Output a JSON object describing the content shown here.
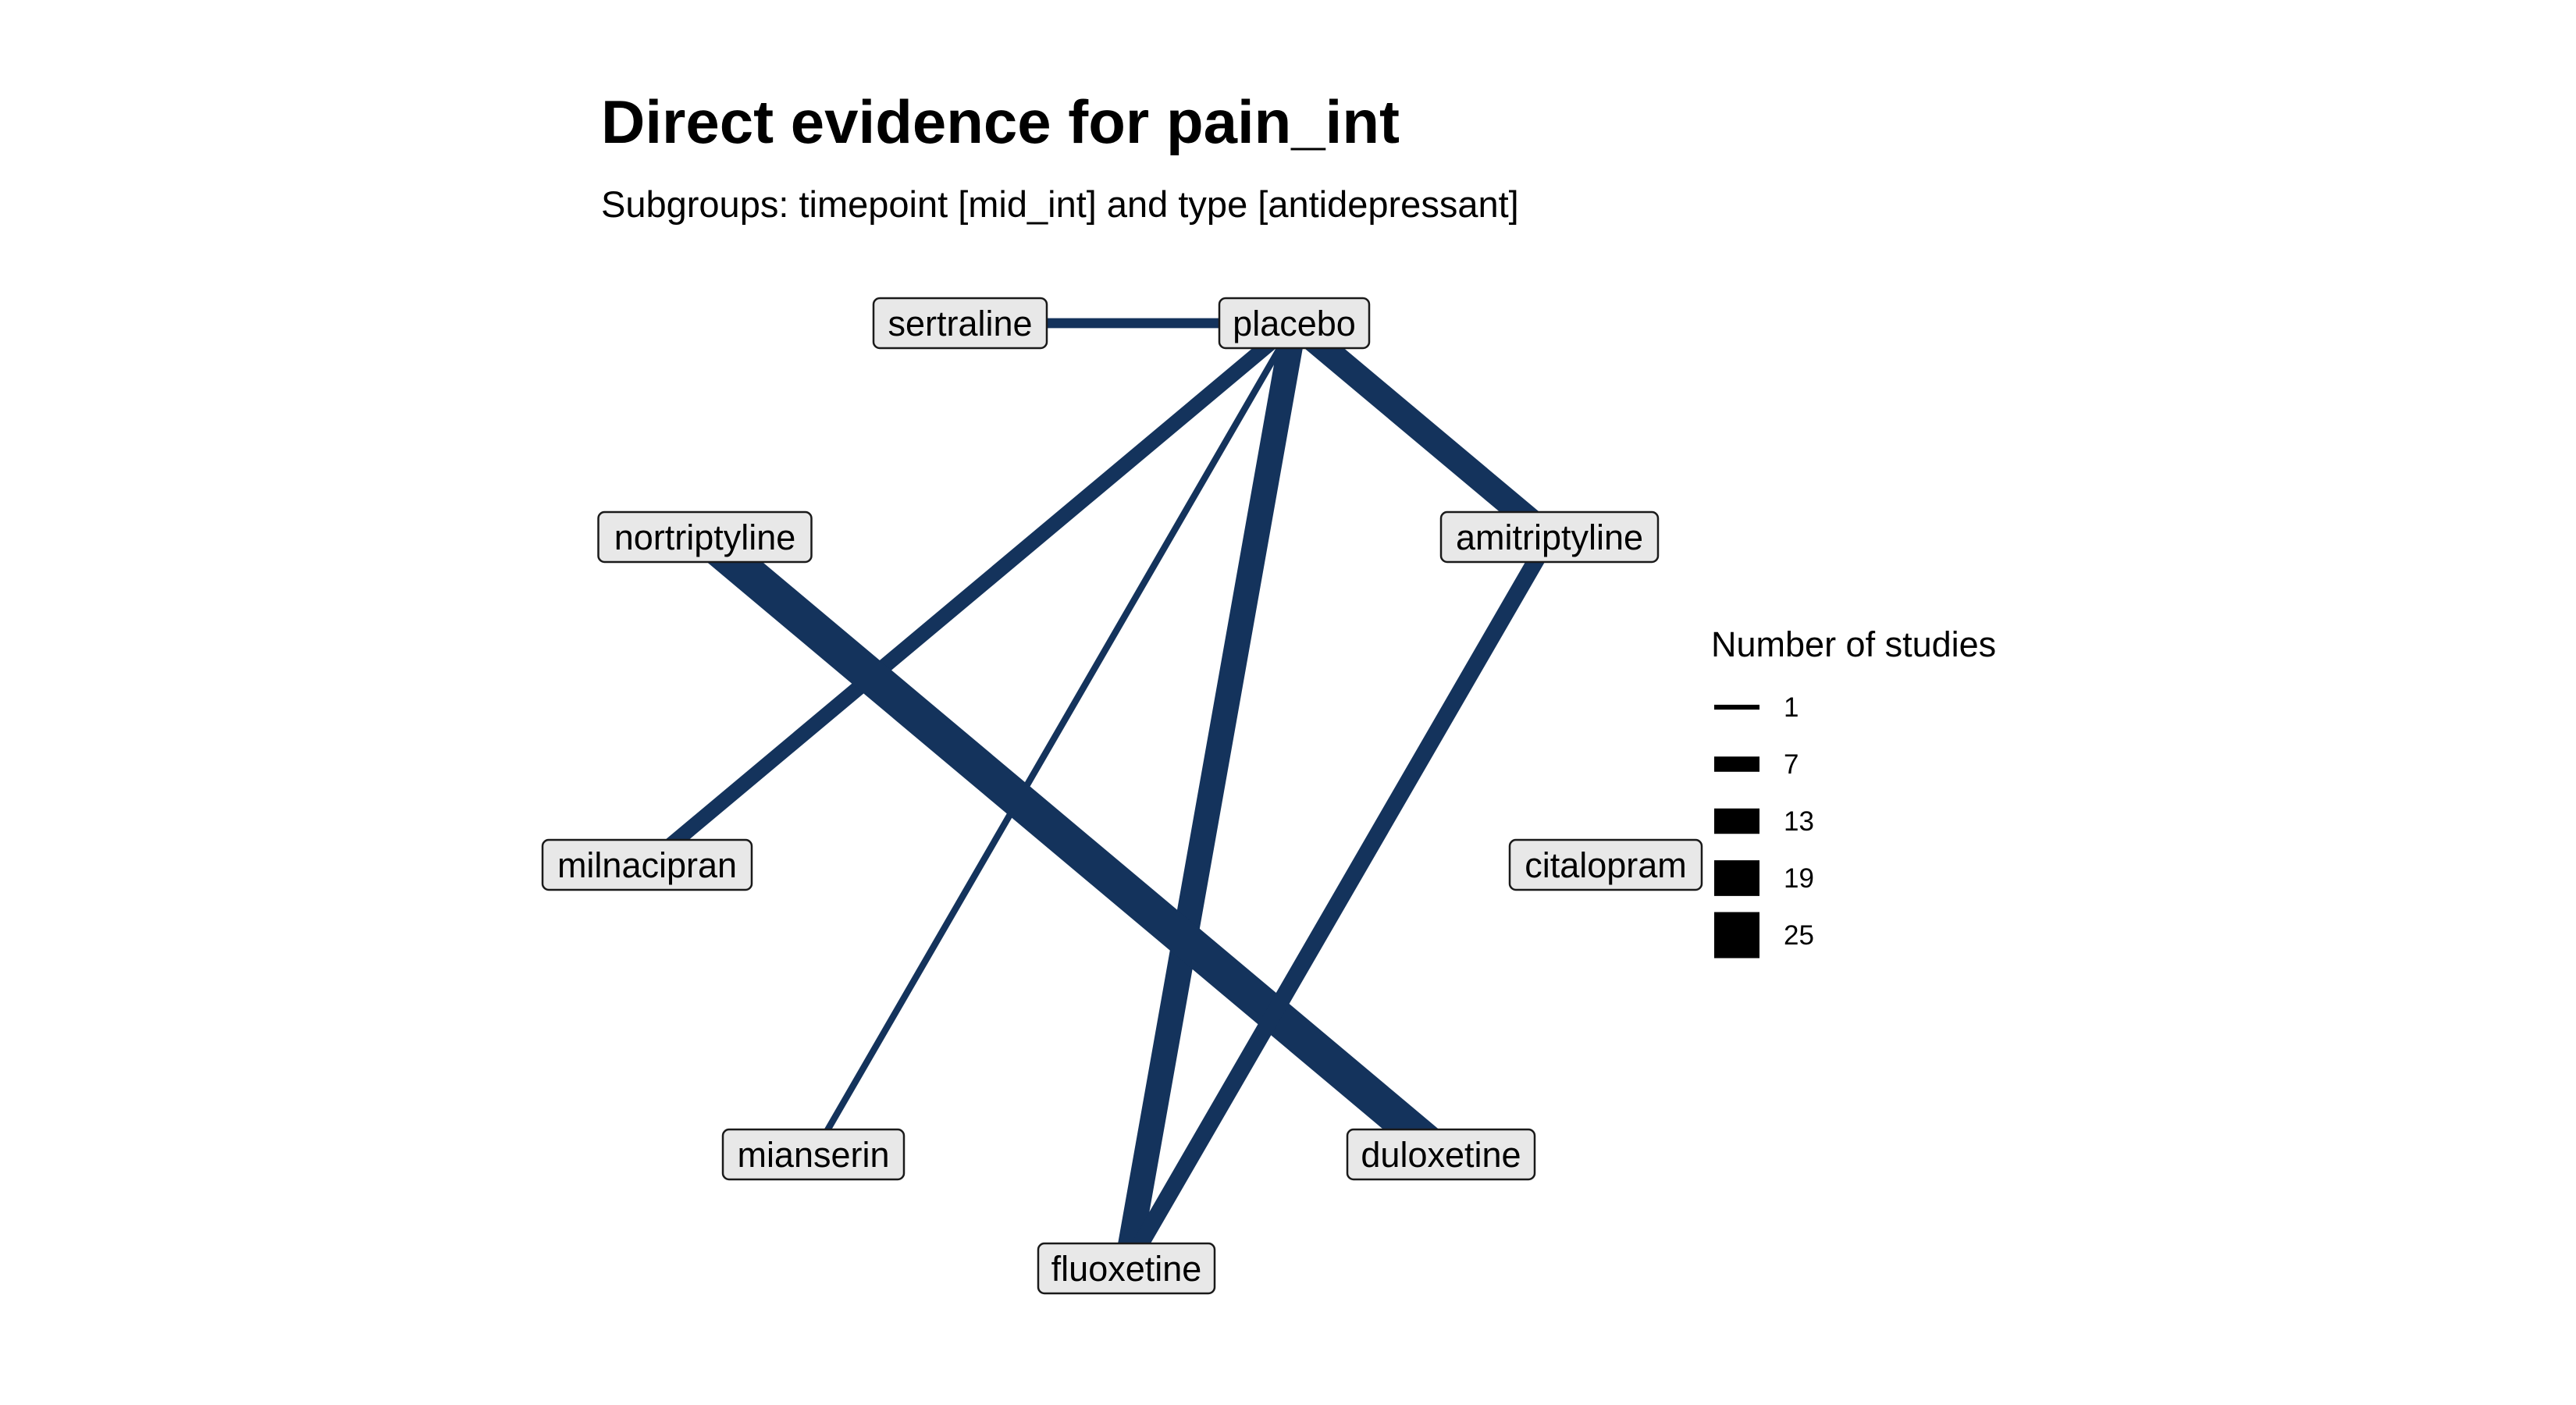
{
  "chart_data": {
    "type": "network",
    "title": "Direct evidence for pain_int",
    "subtitle": "Subgroups: timepoint [mid_int] and type [antidepressant]",
    "edge_color": "#14335c",
    "nodes": [
      "sertraline",
      "placebo",
      "nortriptyline",
      "amitriptyline",
      "milnacipran",
      "citalopram",
      "mianserin",
      "duloxetine",
      "fluoxetine"
    ],
    "edges": [
      {
        "from": "sertraline",
        "to": "placebo",
        "studies": 4
      },
      {
        "from": "placebo",
        "to": "milnacipran",
        "studies": 7
      },
      {
        "from": "placebo",
        "to": "mianserin",
        "studies": 2
      },
      {
        "from": "placebo",
        "to": "fluoxetine",
        "studies": 13
      },
      {
        "from": "placebo",
        "to": "amitriptyline",
        "studies": 13
      },
      {
        "from": "nortriptyline",
        "to": "duloxetine",
        "studies": 19
      },
      {
        "from": "amitriptyline",
        "to": "fluoxetine",
        "studies": 8
      }
    ],
    "legend": {
      "title": "Number of studies",
      "placement": "right",
      "entries": [
        {
          "label": "1",
          "value": 1
        },
        {
          "label": "7",
          "value": 7
        },
        {
          "label": "13",
          "value": 13
        },
        {
          "label": "19",
          "value": 19
        },
        {
          "label": "25",
          "value": 25
        }
      ]
    }
  }
}
